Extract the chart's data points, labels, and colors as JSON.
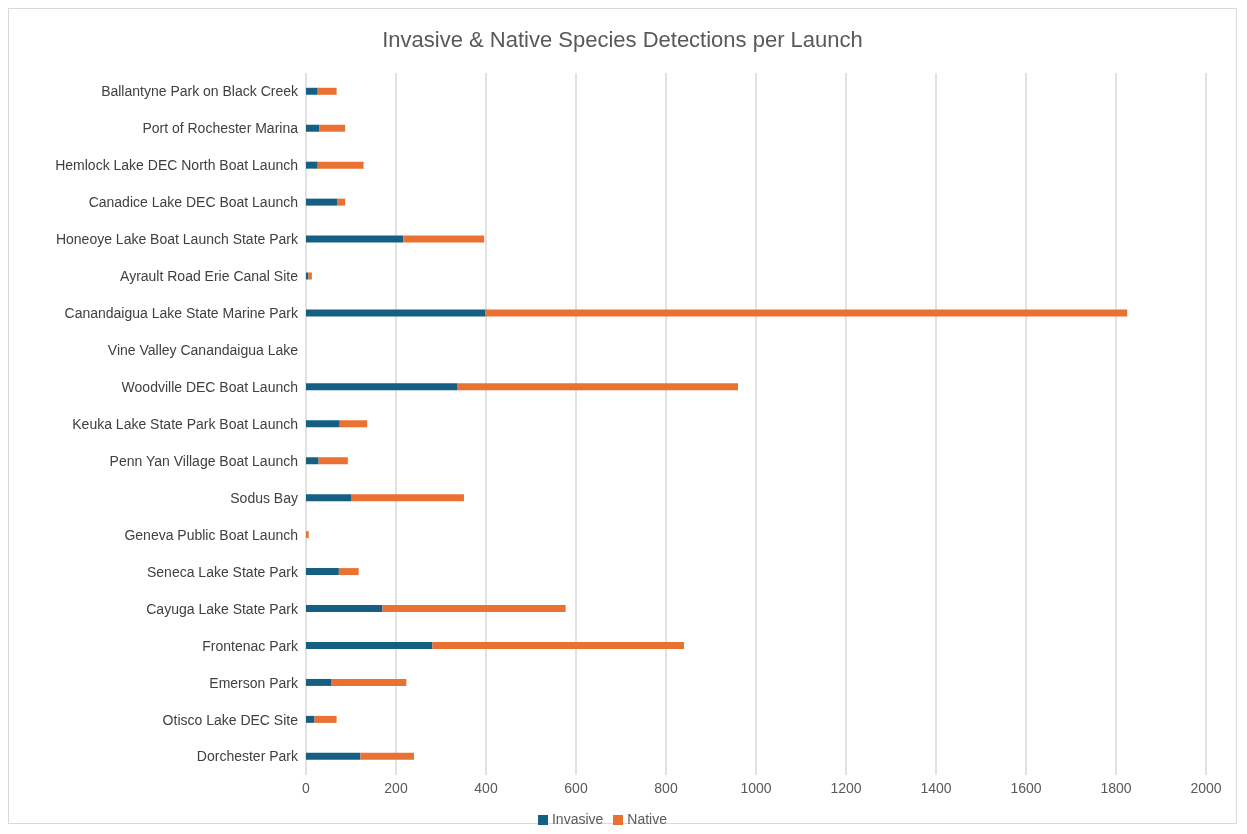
{
  "chart_data": {
    "type": "bar",
    "orientation": "horizontal",
    "stacked": true,
    "title": "Invasive & Native Species Detections per Launch",
    "categories": [
      "Ballantyne Park on Black Creek",
      "Port of Rochester Marina",
      "Hemlock Lake DEC North Boat Launch",
      "Canadice Lake DEC Boat Launch",
      "Honeoye Lake Boat Launch State Park",
      "Ayrault Road Erie Canal Site",
      "Canandaigua Lake State Marine Park",
      "Vine Valley Canandaigua Lake",
      "Woodville DEC Boat Launch",
      "Keuka Lake State Park Boat Launch",
      "Penn Yan Village Boat Launch",
      "Sodus Bay",
      "Geneva Public Boat Launch",
      "Seneca Lake State Park",
      "Cayuga Lake State Park",
      "Frontenac Park",
      "Emerson Park",
      "Otisco Lake DEC Site",
      "Dorchester Park"
    ],
    "series": [
      {
        "name": "Invasive",
        "color": "#156082",
        "values": [
          26,
          30,
          26,
          69,
          216,
          5,
          398,
          null,
          337,
          75,
          28,
          100,
          0,
          73,
          170,
          281,
          57,
          19,
          121
        ]
      },
      {
        "name": "Native",
        "color": "#e97132",
        "values": [
          42,
          57,
          102,
          18,
          180,
          8,
          1427,
          null,
          623,
          61,
          65,
          251,
          6,
          44,
          407,
          559,
          166,
          49,
          119
        ]
      }
    ],
    "xlim": [
      0,
      2000
    ],
    "xticks": [
      0,
      200,
      400,
      600,
      800,
      1000,
      1200,
      1400,
      1600,
      1800,
      2000
    ],
    "grid": "x",
    "legend": "bottom"
  }
}
